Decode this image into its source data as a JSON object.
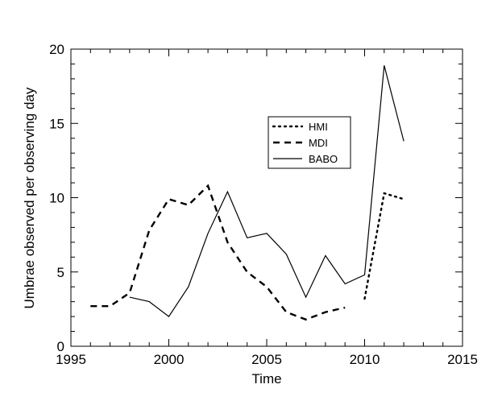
{
  "chart_data": {
    "type": "line",
    "title": "",
    "xlabel": "Time",
    "ylabel": "Umbrae observed per observing day",
    "xlim": [
      1995,
      2015
    ],
    "ylim": [
      0,
      20
    ],
    "x_ticks": [
      1995,
      2000,
      2005,
      2010,
      2015
    ],
    "y_ticks": [
      0,
      5,
      10,
      15,
      20
    ],
    "x_tick_labels": [
      "1995",
      "2000",
      "2005",
      "2010",
      "2015"
    ],
    "y_tick_labels": [
      "0",
      "5",
      "10",
      "15",
      "20"
    ],
    "grid": false,
    "legend_position": "upper-middle-right",
    "series": [
      {
        "name": "HMI",
        "style": "dotted",
        "color": "#000000",
        "x": [
          2010,
          2011,
          2012
        ],
        "y": [
          3.2,
          10.3,
          9.9
        ]
      },
      {
        "name": "MDI",
        "style": "dashed",
        "color": "#000000",
        "x": [
          1996,
          1997,
          1998,
          1999,
          2000,
          2001,
          2002,
          2003,
          2004,
          2005,
          2006,
          2007,
          2008,
          2009
        ],
        "y": [
          2.7,
          2.7,
          3.6,
          7.8,
          9.9,
          9.5,
          10.8,
          7.0,
          5.0,
          4.0,
          2.3,
          1.8,
          2.3,
          2.6
        ]
      },
      {
        "name": "BABO",
        "style": "solid",
        "color": "#000000",
        "x": [
          1998,
          1999,
          2000,
          2001,
          2002,
          2003,
          2004,
          2005,
          2006,
          2007,
          2008,
          2009,
          2010,
          2011,
          2012
        ],
        "y": [
          3.3,
          3.0,
          2.0,
          4.0,
          7.6,
          10.4,
          7.3,
          7.6,
          6.2,
          3.3,
          6.1,
          4.2,
          4.8,
          18.9,
          13.8
        ]
      }
    ]
  }
}
